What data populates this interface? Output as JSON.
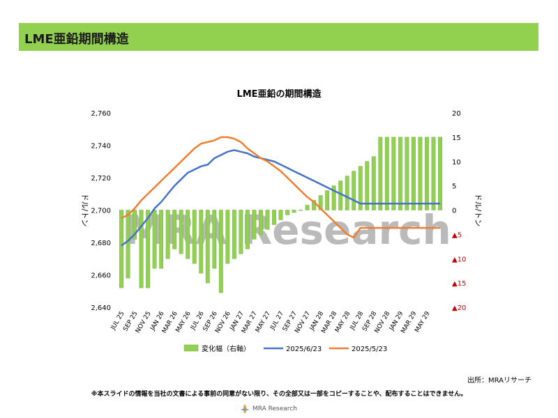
{
  "header": {
    "title": "LME亜鉛期間構造"
  },
  "chart_data": {
    "type": "bar+line",
    "title": "LME亜鉛の期間構造",
    "left_axis": {
      "label": "ドル/トン",
      "min": 2640,
      "max": 2760,
      "step": 20,
      "tick_labels": [
        "2,640",
        "2,660",
        "2,680",
        "2,700",
        "2,720",
        "2,740",
        "2,760"
      ]
    },
    "right_axis": {
      "label": "ドル/トン",
      "min": -20,
      "max": 20,
      "step": 5,
      "tick_labels": [
        "▲20",
        "▲15",
        "▲10",
        "▲5",
        "0",
        "5",
        "10",
        "15",
        "20"
      ],
      "negative_color": "#c00000"
    },
    "x_tick_labels": [
      "JUL 25",
      "SEP 25",
      "NOV 25",
      "JAN 26",
      "MAR 26",
      "MAY 26",
      "JUL 26",
      "SEP 26",
      "NOV 26",
      "JAN 27",
      "MAR 27",
      "MAY 27",
      "JUL 27",
      "SEP 27",
      "NOV 27",
      "JAN 28",
      "MAR 28",
      "MAY 28",
      "JUL 28",
      "SEP 28",
      "NOV 28",
      "JAN 29",
      "MAR 29",
      "MAY 29"
    ],
    "months": 49,
    "series": [
      {
        "name": "変化幅（右軸）",
        "type": "bar",
        "axis": "right",
        "color": "#92d050",
        "values": [
          -16,
          -14,
          -6,
          -16,
          -16,
          -12,
          -12,
          -10,
          -8,
          -9,
          -10,
          -11,
          -13,
          -15,
          -12,
          -17,
          -11,
          -10,
          -9,
          -8,
          -6,
          -5,
          -4,
          -3,
          -2,
          -1,
          -0.5,
          0,
          1,
          2,
          3,
          4,
          5,
          6,
          7,
          8,
          9,
          10,
          11,
          15,
          15,
          15,
          15,
          15,
          15,
          15,
          15,
          15,
          15
        ]
      },
      {
        "name": "2025/6/23",
        "type": "line",
        "axis": "left",
        "color": "#4472c4",
        "values": [
          2678,
          2681,
          2685,
          2690,
          2695,
          2701,
          2705,
          2710,
          2715,
          2719,
          2723,
          2725,
          2727,
          2728,
          2732,
          2734,
          2736,
          2737,
          2736,
          2735,
          2733,
          2732,
          2731,
          2730,
          2728,
          2726,
          2724,
          2722,
          2720,
          2718,
          2716,
          2714,
          2712,
          2710,
          2708,
          2706,
          2704,
          2704,
          2704,
          2704,
          2704,
          2704,
          2704,
          2704,
          2704,
          2704,
          2704,
          2704,
          2704
        ]
      },
      {
        "name": "2025/5/23",
        "type": "line",
        "axis": "left",
        "color": "#ed7d31",
        "values": [
          2695,
          2697,
          2701,
          2706,
          2710,
          2714,
          2718,
          2722,
          2726,
          2730,
          2734,
          2738,
          2741,
          2742,
          2743,
          2745,
          2745,
          2744,
          2742,
          2738,
          2735,
          2732,
          2730,
          2727,
          2724,
          2720,
          2716,
          2712,
          2708,
          2705,
          2701,
          2697,
          2693,
          2689,
          2685,
          2683,
          2689,
          2689,
          2689,
          2689,
          2689,
          2689,
          2689,
          2689,
          2689,
          2689,
          2689,
          2689,
          2689
        ]
      }
    ],
    "legend_position": "bottom",
    "grid": false
  },
  "watermark": {
    "text": "MRA Research"
  },
  "footer": {
    "source": "出所：MRAリサーチ",
    "disclaimer": "※本スライドの情報を当社の文書による事前の同意がない限り、その全部又は一部をコピーすることや、配布することはできません。",
    "logo_text": "MRA Research"
  }
}
